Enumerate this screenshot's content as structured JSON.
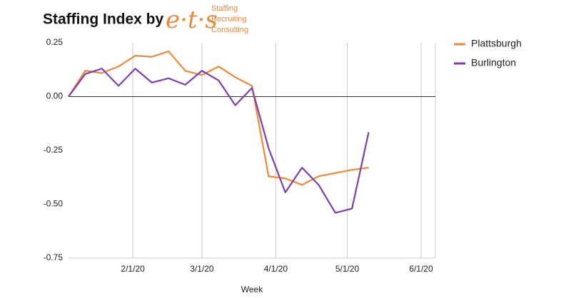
{
  "chart_data": {
    "type": "line",
    "title": "Staffing Index by",
    "logo": {
      "mark": "e·t·s",
      "lines": [
        "Staffing",
        "Recruiting",
        "Consulting"
      ]
    },
    "x_label": "Week",
    "x": [
      "2020-01-05",
      "2020-01-12",
      "2020-01-19",
      "2020-01-26",
      "2020-02-02",
      "2020-02-09",
      "2020-02-16",
      "2020-02-23",
      "2020-03-01",
      "2020-03-08",
      "2020-03-15",
      "2020-03-22",
      "2020-03-29",
      "2020-04-05",
      "2020-04-12",
      "2020-04-19",
      "2020-04-26",
      "2020-05-03",
      "2020-05-10"
    ],
    "series": [
      {
        "name": "Plattsburgh",
        "color": "#f0883a",
        "values": [
          0,
          0.12,
          0.11,
          0.14,
          0.19,
          0.185,
          0.21,
          0.12,
          0.1,
          0.14,
          0.09,
          0.05,
          -0.37,
          -0.38,
          -0.41,
          -0.37,
          -0.355,
          -0.34,
          -0.33
        ]
      },
      {
        "name": "Burlington",
        "color": "#7b3fb0",
        "values": [
          0,
          0.105,
          0.13,
          0.05,
          0.13,
          0.065,
          0.085,
          0.055,
          0.12,
          0.075,
          -0.04,
          0.04,
          -0.24,
          -0.445,
          -0.33,
          -0.41,
          -0.54,
          -0.52,
          -0.165
        ]
      }
    ],
    "xlim": [
      "2020-01-05",
      "2020-06-07"
    ],
    "xticks": [
      {
        "value": "2020-02-01",
        "label": "2/1/20"
      },
      {
        "value": "2020-03-01",
        "label": "3/1/20"
      },
      {
        "value": "2020-04-01",
        "label": "4/1/20"
      },
      {
        "value": "2020-05-01",
        "label": "5/1/20"
      },
      {
        "value": "2020-06-01",
        "label": "6/1/20"
      }
    ],
    "ylim": [
      -0.75,
      0.25
    ],
    "yticks": [
      {
        "value": 0.25,
        "label": "0.25"
      },
      {
        "value": 0,
        "label": "0.00"
      },
      {
        "value": -0.25,
        "label": "-0.25"
      },
      {
        "value": -0.5,
        "label": "-0.50"
      },
      {
        "value": -0.75,
        "label": "-0.75"
      }
    ],
    "grid": "x",
    "legend": "right"
  }
}
